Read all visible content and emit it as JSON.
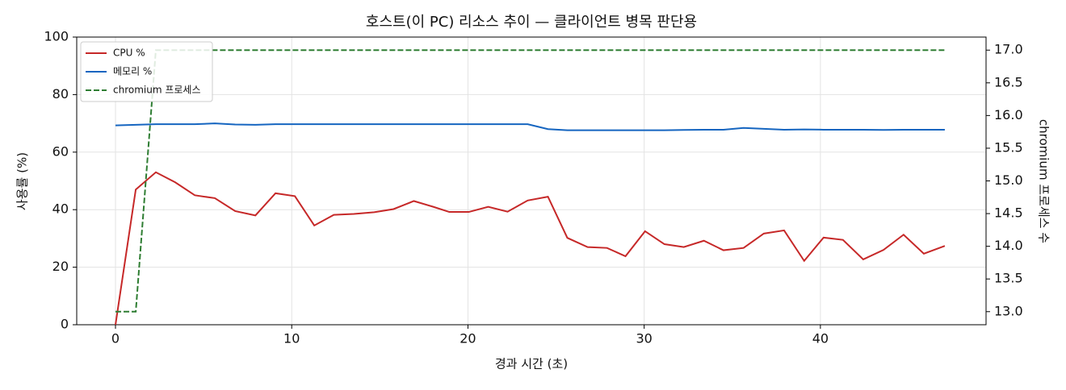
{
  "chart_data": {
    "type": "line",
    "title": "호스트(이 PC) 리소스 추이 — 클라이언트 병목 판단용",
    "xlabel": "경과 시간 (초)",
    "ylabel": "사용률 (%)",
    "y2label": "chromium 프로세스 수",
    "x": [
      0,
      1.15,
      2.29,
      3.39,
      4.5,
      5.64,
      6.79,
      7.94,
      9.08,
      10.18,
      11.28,
      12.39,
      13.53,
      14.68,
      15.78,
      16.93,
      18.03,
      18.94,
      20.05,
      21.15,
      22.25,
      23.39,
      24.54,
      25.64,
      26.79,
      27.89,
      28.94,
      30.05,
      31.15,
      32.25,
      33.39,
      34.5,
      35.64,
      36.79,
      37.94,
      39.08,
      40.18,
      41.28,
      42.43,
      43.58,
      44.72,
      45.87,
      47.06
    ],
    "series": [
      {
        "name": "CPU %",
        "color": "#c62828",
        "linestyle": "solid",
        "values": [
          0,
          47,
          53,
          49.5,
          45,
          44,
          39.5,
          38,
          45.7,
          44.7,
          34.5,
          38.2,
          38.5,
          39.1,
          40.2,
          43,
          41,
          39.2,
          39.2,
          41,
          39.3,
          43.2,
          44.5,
          30.2,
          27,
          26.7,
          23.8,
          32.5,
          28,
          27,
          29.2,
          25.9,
          26.7,
          31.7,
          32.8,
          22.2,
          30.3,
          29.5,
          22.7,
          26,
          31.3,
          24.7,
          27.4
        ]
      },
      {
        "name": "메모리 %",
        "color": "#1565c0",
        "linestyle": "solid",
        "values": [
          69.3,
          69.5,
          69.7,
          69.7,
          69.7,
          70,
          69.6,
          69.5,
          69.7,
          69.7,
          69.7,
          69.7,
          69.7,
          69.7,
          69.7,
          69.7,
          69.7,
          69.7,
          69.7,
          69.7,
          69.7,
          69.7,
          68,
          67.6,
          67.6,
          67.6,
          67.6,
          67.6,
          67.6,
          67.7,
          67.8,
          67.8,
          68.4,
          68.1,
          67.8,
          67.9,
          67.8,
          67.8,
          67.8,
          67.7,
          67.8,
          67.8,
          67.8
        ]
      },
      {
        "name": "chromium 프로세스",
        "color": "#2e7d32",
        "linestyle": "dashed",
        "axis": "y2",
        "values": [
          13,
          13,
          17,
          17,
          17,
          17,
          17,
          17,
          17,
          17,
          17,
          17,
          17,
          17,
          17,
          17,
          17,
          17,
          17,
          17,
          17,
          17,
          17,
          17,
          17,
          17,
          17,
          17,
          17,
          17,
          17,
          17,
          17,
          17,
          17,
          17,
          17,
          17,
          17,
          17,
          17,
          17,
          17
        ]
      }
    ],
    "xlim": [
      -2.2,
      49.4
    ],
    "xticks": [
      0,
      10,
      20,
      30,
      40
    ],
    "ylim": [
      0,
      100
    ],
    "yticks": [
      0,
      20,
      40,
      60,
      80,
      100
    ],
    "y2lim": [
      12.8,
      17.2
    ],
    "y2ticks": [
      {
        "value": 13,
        "label": "13.0"
      },
      {
        "value": 13.5,
        "label": "13.5"
      },
      {
        "value": 14,
        "label": "14.0"
      },
      {
        "value": 14.5,
        "label": "14.5"
      },
      {
        "value": 15,
        "label": "15.0"
      },
      {
        "value": 15.5,
        "label": "15.5"
      },
      {
        "value": 16,
        "label": "16.0"
      },
      {
        "value": 16.5,
        "label": "16.5"
      },
      {
        "value": 17,
        "label": "17.0"
      }
    ],
    "grid": true,
    "legend": "upper-left"
  }
}
